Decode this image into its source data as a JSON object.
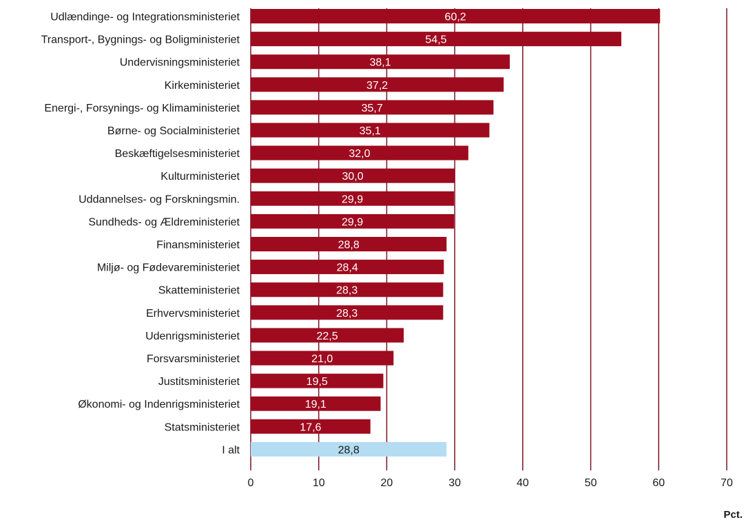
{
  "chart_data": {
    "type": "bar",
    "orientation": "horizontal",
    "categories": [
      "Udlændinge- og Integrationsministeriet",
      "Transport-, Bygnings- og Boligministeriet",
      "Undervisningsministeriet",
      "Kirkeministeriet",
      "Energi-, Forsynings- og Klimaministeriet",
      "Børne- og Socialministeriet",
      "Beskæftigelsesministeriet",
      "Kulturministeriet",
      "Uddannelses- og Forskningsmin.",
      "Sundheds- og Ældreministeriet",
      "Finansministeriet",
      "Miljø- og Fødevareministeriet",
      "Skatteministeriet",
      "Erhvervsministeriet",
      "Udenrigsministeriet",
      "Forsvarsministeriet",
      "Justitsministeriet",
      "Økonomi- og Indenrigsministeriet",
      "Statsministeriet",
      "I alt"
    ],
    "values": [
      60.2,
      54.5,
      38.1,
      37.2,
      35.7,
      35.1,
      32.0,
      30.0,
      29.9,
      29.9,
      28.8,
      28.4,
      28.3,
      28.3,
      22.5,
      21.0,
      19.5,
      19.1,
      17.6,
      28.8
    ],
    "value_labels": [
      "60,2",
      "54,5",
      "38,1",
      "37,2",
      "35,7",
      "35,1",
      "32,0",
      "30,0",
      "29,9",
      "29,9",
      "28,8",
      "28,4",
      "28,3",
      "28,3",
      "22,5",
      "21,0",
      "19,5",
      "19,1",
      "17,6",
      "28,8"
    ],
    "xlim": [
      0,
      70
    ],
    "xticks": [
      0,
      10,
      20,
      30,
      40,
      50,
      60,
      70
    ],
    "xlabel": "Pct.",
    "grid": "vertical",
    "colors": {
      "bar": "#9e0b1f",
      "total_bar": "#b4dcf2",
      "grid": "#7a1020",
      "bar_text": "#ffffff",
      "total_text": "#1a1a1a"
    }
  }
}
